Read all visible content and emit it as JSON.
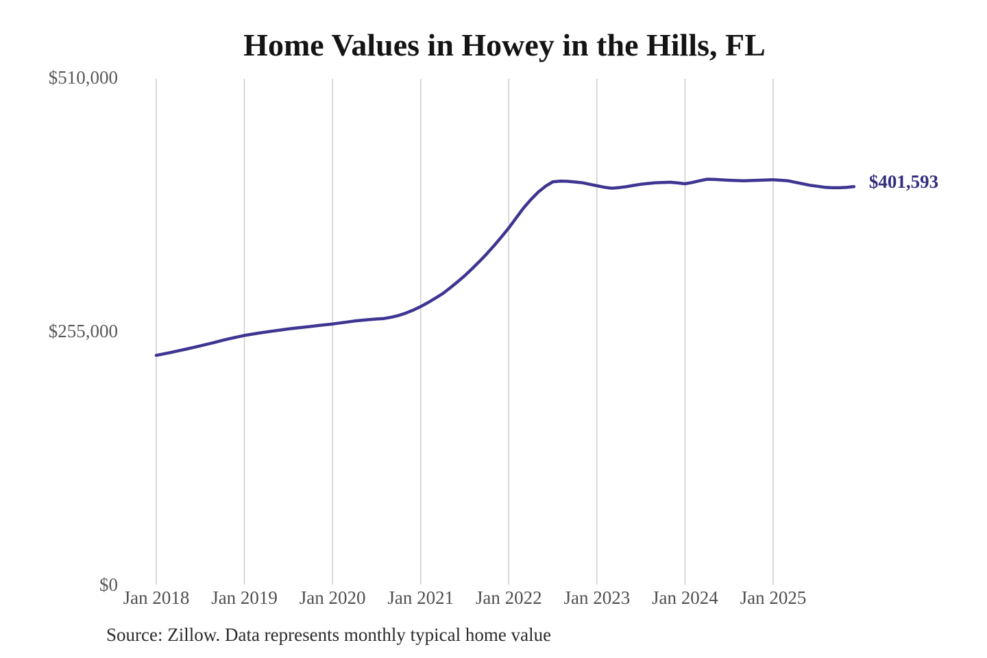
{
  "chart": {
    "title": "Home Values in Howey in the Hills, FL",
    "end_label": "$401,593",
    "source": "Source: Zillow. Data represents monthly typical home value"
  },
  "chart_data": {
    "type": "line",
    "title": "Home Values in Howey in the Hills, FL",
    "x_range": {
      "start": "2018-01",
      "end": "2025-12",
      "step": "month"
    },
    "x_tick_labels": [
      "Jan 2018",
      "Jan 2019",
      "Jan 2020",
      "Jan 2021",
      "Jan 2022",
      "Jan 2023",
      "Jan 2024",
      "Jan 2025"
    ],
    "x_tick_months": [
      0,
      12,
      24,
      36,
      48,
      60,
      72,
      84
    ],
    "y_ticks": [
      {
        "label": "$0",
        "value": 0
      },
      {
        "label": "$255,000",
        "value": 255000
      },
      {
        "label": "$510,000",
        "value": 510000
      }
    ],
    "ylim": [
      0,
      510000
    ],
    "grid": "vertical-only",
    "legend": "none",
    "line_color": "#3d3591",
    "label_color": "#342d7e",
    "grid_color": "#cccccc",
    "end_value": 401593,
    "end_value_label": "$401,593",
    "series": [
      {
        "name": "Monthly typical home value",
        "values": [
          232000,
          233400,
          234900,
          236500,
          238100,
          239800,
          241500,
          243300,
          245100,
          247000,
          248700,
          250400,
          252000,
          253200,
          254400,
          255500,
          256500,
          257500,
          258500,
          259400,
          260200,
          261000,
          261900,
          262700,
          263500,
          264500,
          265500,
          266500,
          267200,
          267900,
          268500,
          269000,
          270300,
          272000,
          274500,
          277500,
          281000,
          285000,
          289400,
          294000,
          299700,
          305700,
          312000,
          319000,
          326300,
          334000,
          342300,
          351000,
          360000,
          370000,
          380000,
          388500,
          396000,
          402000,
          406500,
          407200,
          407000,
          406300,
          405500,
          404000,
          402500,
          401000,
          400000,
          400600,
          401500,
          402800,
          404000,
          404800,
          405500,
          405800,
          406000,
          405300,
          404500,
          405800,
          407500,
          409000,
          408800,
          408400,
          408000,
          407700,
          407500,
          407700,
          408000,
          408300,
          408500,
          408000,
          407500,
          406000,
          404500,
          403000,
          402000,
          401000,
          400500,
          400500,
          400800,
          401593
        ]
      }
    ]
  }
}
